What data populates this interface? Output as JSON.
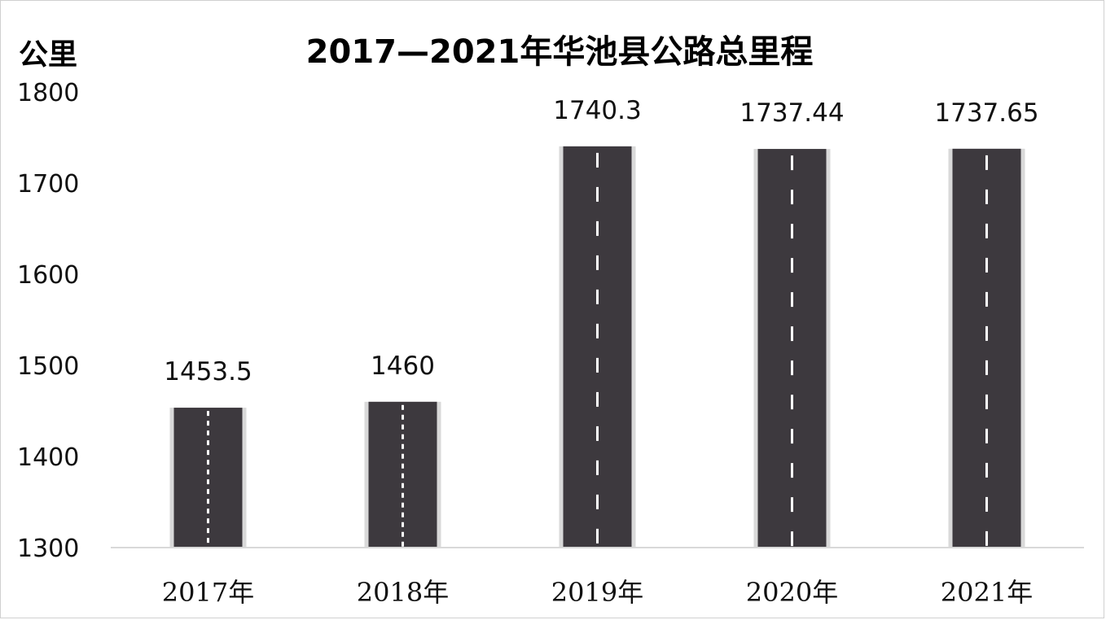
{
  "chart_data": {
    "type": "bar",
    "title": "2017—2021年华池县公路总里程",
    "ylabel": "公里",
    "xlabel": "",
    "categories": [
      "2017年",
      "2018年",
      "2019年",
      "2020年",
      "2021年"
    ],
    "values": [
      1453.5,
      1460,
      1740.3,
      1737.44,
      1737.65
    ],
    "value_labels": [
      "1453.5",
      "1460",
      "1740.3",
      "1737.44",
      "1737.65"
    ],
    "ylim": [
      1300,
      1800
    ],
    "yticks": [
      "1300",
      "1400",
      "1500",
      "1600",
      "1700",
      "1800"
    ],
    "grid": false,
    "legend": "none",
    "bar_style": "road",
    "colors": {
      "bar": "#3d393e",
      "bar_edge": "#d9d9d9",
      "dash": "#ffffff",
      "axis": "#d9d9d9"
    }
  }
}
